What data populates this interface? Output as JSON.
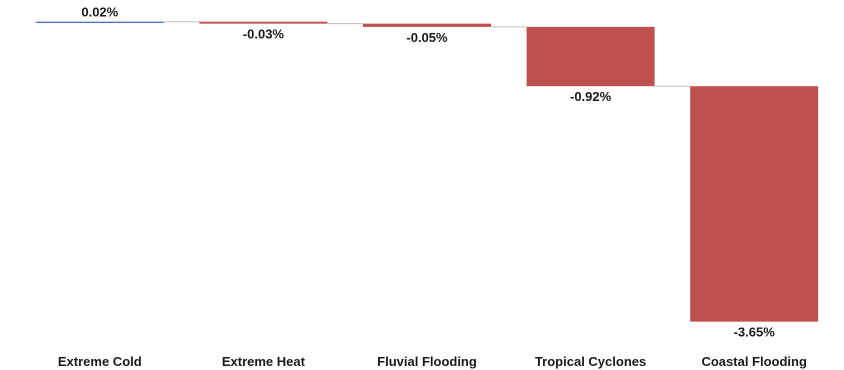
{
  "chart_data": {
    "type": "bar",
    "subtype": "waterfall",
    "categories": [
      "Extreme Cold",
      "Extreme Heat",
      "Fluvial Flooding",
      "Tropical Cyclones",
      "Coastal Flooding"
    ],
    "values": [
      0.02,
      -0.03,
      -0.05,
      -0.92,
      -3.65
    ],
    "data_labels": [
      "0.02%",
      "-0.03%",
      "-0.05%",
      "-0.92%",
      "-3.65%"
    ],
    "title": "",
    "xlabel": "",
    "ylabel": "",
    "ylim": [
      -4.6,
      0.02
    ],
    "grid": false,
    "legend": "none",
    "colors": {
      "positive": "#4472c4",
      "negative": "#c0504d",
      "connector": "#bfbfbf",
      "text": "#1a1a1a"
    }
  }
}
